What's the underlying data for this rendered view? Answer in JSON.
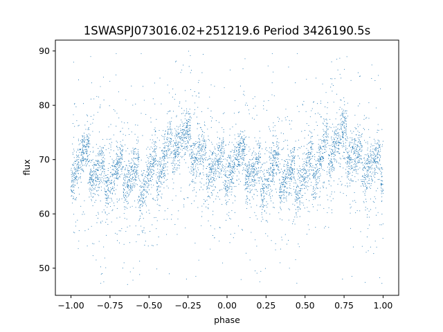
{
  "chart_data": {
    "type": "scatter",
    "title": "1SWASPJ073016.02+251219.6 Period 3426190.5s",
    "xlabel": "phase",
    "ylabel": "flux",
    "xlim": [
      -1.1,
      1.1
    ],
    "ylim": [
      45,
      92
    ],
    "x_ticks": [
      -1.0,
      -0.75,
      -0.5,
      -0.25,
      0.0,
      0.25,
      0.5,
      0.75,
      1.0
    ],
    "x_tick_labels": [
      "−1.00",
      "−0.75",
      "−0.50",
      "−0.25",
      "0.00",
      "0.25",
      "0.50",
      "0.75",
      "1.00"
    ],
    "y_ticks": [
      50,
      60,
      70,
      80,
      90
    ],
    "y_tick_labels": [
      "50",
      "60",
      "70",
      "80",
      "90"
    ],
    "grid": false,
    "legend": "none",
    "marker_color": "#1f77b4",
    "trend": {
      "phase": [
        0.0,
        0.05,
        0.1,
        0.15,
        0.2,
        0.25,
        0.3,
        0.35,
        0.4,
        0.45,
        0.5,
        0.55,
        0.6,
        0.65,
        0.7,
        0.75,
        0.8,
        0.85,
        0.9,
        0.95,
        1.0
      ],
      "flux": [
        69.5,
        70.0,
        69.5,
        68.0,
        67.0,
        67.0,
        67.5,
        67.0,
        66.5,
        66.5,
        67.0,
        68.5,
        70.5,
        72.5,
        74.0,
        73.0,
        71.0,
        70.0,
        69.5,
        68.5,
        68.0
      ]
    },
    "scatter_sd": 3.0,
    "points_per_unit_phase": 2200,
    "outliers": [
      {
        "x": -0.97,
        "y": 58.5
      },
      {
        "x": -0.95,
        "y": 55.0
      },
      {
        "x": -0.86,
        "y": 61.5
      },
      {
        "x": -0.84,
        "y": 62.5
      },
      {
        "x": -0.8,
        "y": 49.0
      },
      {
        "x": -0.79,
        "y": 47.5
      },
      {
        "x": -0.77,
        "y": 59.0
      },
      {
        "x": -0.74,
        "y": 58.5
      },
      {
        "x": -0.71,
        "y": 89.5
      },
      {
        "x": -0.66,
        "y": 51.0
      },
      {
        "x": -0.6,
        "y": 50.0
      },
      {
        "x": -0.55,
        "y": 89.5
      },
      {
        "x": -0.48,
        "y": 58.0
      },
      {
        "x": -0.43,
        "y": 85.0
      },
      {
        "x": -0.38,
        "y": 61.0
      },
      {
        "x": -0.33,
        "y": 88.0
      },
      {
        "x": -0.29,
        "y": 86.5
      },
      {
        "x": -0.26,
        "y": 48.0
      },
      {
        "x": -0.2,
        "y": 48.5
      },
      {
        "x": -0.16,
        "y": 86.0
      },
      {
        "x": -0.09,
        "y": 60.5
      },
      {
        "x": -0.05,
        "y": 55.0
      },
      {
        "x": 0.02,
        "y": 86.5
      },
      {
        "x": 0.1,
        "y": 57.0
      },
      {
        "x": 0.12,
        "y": 62.0
      },
      {
        "x": 0.18,
        "y": 49.5
      },
      {
        "x": 0.21,
        "y": 47.5
      },
      {
        "x": 0.23,
        "y": 59.0
      },
      {
        "x": 0.26,
        "y": 58.5
      },
      {
        "x": 0.29,
        "y": 89.5
      },
      {
        "x": 0.34,
        "y": 51.0
      },
      {
        "x": 0.4,
        "y": 50.0
      },
      {
        "x": 0.45,
        "y": 89.5
      },
      {
        "x": 0.52,
        "y": 58.0
      },
      {
        "x": 0.57,
        "y": 85.0
      },
      {
        "x": 0.62,
        "y": 61.0
      },
      {
        "x": 0.67,
        "y": 88.0
      },
      {
        "x": 0.71,
        "y": 86.5
      },
      {
        "x": 0.74,
        "y": 48.0
      },
      {
        "x": 0.8,
        "y": 48.5
      },
      {
        "x": 0.84,
        "y": 86.0
      },
      {
        "x": 0.91,
        "y": 60.5
      },
      {
        "x": 0.95,
        "y": 55.0
      },
      {
        "x": 0.97,
        "y": 85.5
      },
      {
        "x": 0.99,
        "y": 58.0
      }
    ]
  }
}
